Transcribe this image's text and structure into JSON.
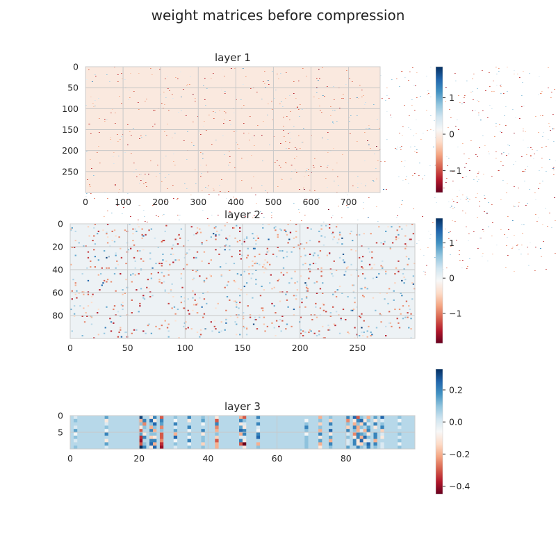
{
  "figure": {
    "title": "weight matrices before compression"
  },
  "colormap": {
    "name": "RdBu",
    "stops": [
      "#67001f",
      "#b2182b",
      "#d6604d",
      "#f4a582",
      "#fddbc7",
      "#f7f7f7",
      "#d1e5f0",
      "#92c5de",
      "#4393c3",
      "#2166ac",
      "#053061"
    ]
  },
  "chart_data": [
    {
      "type": "heatmap",
      "title": "layer 1",
      "rows": 300,
      "cols": 784,
      "xlim": [
        0,
        784
      ],
      "ylim": [
        300,
        0
      ],
      "xticks": [
        0,
        100,
        200,
        300,
        400,
        500,
        600,
        700
      ],
      "yticks": [
        0,
        50,
        100,
        150,
        200,
        250
      ],
      "grid": true,
      "colorbar": {
        "range": [
          -1.6,
          1.85
        ],
        "ticks": [
          1,
          0,
          -1
        ],
        "tick_labels": [
          "1",
          "0",
          "−1"
        ]
      },
      "background_value": -0.05
    },
    {
      "type": "heatmap",
      "title": "layer 2",
      "rows": 100,
      "cols": 300,
      "xlim": [
        0,
        300
      ],
      "ylim": [
        100,
        0
      ],
      "xticks": [
        0,
        50,
        100,
        150,
        200,
        250
      ],
      "yticks": [
        0,
        20,
        40,
        60,
        80
      ],
      "grid": true,
      "colorbar": {
        "range": [
          -1.85,
          1.7
        ],
        "ticks": [
          1,
          0,
          -1
        ],
        "tick_labels": [
          "1",
          "0",
          "−1"
        ]
      },
      "background_value": 0.02
    },
    {
      "type": "heatmap",
      "title": "layer 3",
      "rows": 10,
      "cols": 100,
      "xlim": [
        0,
        100
      ],
      "ylim": [
        10,
        0
      ],
      "xticks": [
        0,
        20,
        40,
        60,
        80
      ],
      "yticks": [
        0,
        5
      ],
      "grid": true,
      "colorbar": {
        "range": [
          -0.45,
          0.33
        ],
        "ticks": [
          0.2,
          0.0,
          -0.2,
          -0.4
        ],
        "tick_labels": [
          "0.2",
          "0.0",
          "−0.2",
          "−0.4"
        ]
      },
      "background_value": 0.05,
      "active_columns": [
        1,
        10,
        20,
        21,
        23,
        24,
        26,
        30,
        34,
        38,
        42,
        49,
        50,
        54,
        68,
        72,
        75,
        80,
        82,
        83,
        84,
        85,
        86,
        88,
        90,
        95
      ],
      "values": [
        [
          0,
          0.15,
          0.3,
          0.05,
          -0.1,
          0.2,
          -0.3,
          0.1,
          0.2,
          0.1,
          -0.1,
          -0.2,
          -0.3,
          0.2,
          0.05,
          -0.2,
          0.1,
          0.2,
          0.25,
          -0.3,
          0.1,
          0.05,
          -0.2,
          0.15,
          0.25,
          0.1
        ],
        [
          0.1,
          -0.1,
          -0.2,
          0.2,
          0.25,
          -0.1,
          0.2,
          -0.05,
          -0.1,
          0.15,
          -0.3,
          0.2,
          0.1,
          0.05,
          -0.05,
          0.1,
          -0.15,
          -0.25,
          -0.1,
          0.2,
          0.25,
          -0.1,
          0.1,
          -0.1,
          0.0,
          -0.05
        ],
        [
          0.05,
          0.0,
          0.1,
          -0.25,
          0.1,
          0.25,
          0.15,
          0.2,
          0.05,
          -0.05,
          0.2,
          -0.1,
          0.0,
          0.2,
          0.1,
          -0.15,
          0.2,
          0.1,
          -0.2,
          0.1,
          -0.15,
          0.2,
          0.0,
          0.2,
          0.1,
          0.1
        ],
        [
          0.0,
          0.1,
          -0.1,
          0.1,
          -0.2,
          0.1,
          -0.25,
          0.0,
          0.2,
          0.05,
          -0.25,
          0.15,
          -0.1,
          0.0,
          0.2,
          0.1,
          0.05,
          -0.15,
          0.2,
          -0.2,
          0.1,
          0.05,
          0.15,
          -0.1,
          0.2,
          0.0
        ],
        [
          0.15,
          -0.05,
          -0.3,
          0.05,
          0.2,
          -0.2,
          0.1,
          0.15,
          -0.05,
          0.2,
          -0.2,
          0.25,
          0.2,
          -0.05,
          0.1,
          -0.2,
          0.25,
          0.2,
          0.1,
          -0.2,
          0.0,
          -0.2,
          0.2,
          0.05,
          -0.15,
          0.05
        ],
        [
          -0.05,
          0.2,
          0.15,
          -0.1,
          0.1,
          0.1,
          -0.3,
          -0.2,
          0.1,
          -0.1,
          0.1,
          -0.2,
          0.2,
          0.2,
          -0.05,
          0.2,
          -0.1,
          0.0,
          -0.25,
          0.2,
          0.15,
          0.1,
          -0.1,
          0.2,
          0.0,
          0.1
        ],
        [
          0.1,
          0.05,
          -0.35,
          0.2,
          -0.15,
          -0.1,
          -0.3,
          0.25,
          -0.05,
          0.1,
          -0.15,
          0.0,
          0.0,
          0.25,
          0.1,
          -0.1,
          0.15,
          0.1,
          -0.1,
          0.2,
          -0.2,
          0.25,
          0.1,
          0.2,
          -0.1,
          0.0
        ],
        [
          0.0,
          -0.1,
          -0.4,
          0.05,
          0.2,
          0.2,
          -0.25,
          -0.05,
          0.2,
          0.1,
          -0.3,
          0.2,
          -0.1,
          0.05,
          0.1,
          0.15,
          -0.2,
          0.0,
          0.2,
          -0.1,
          0.25,
          -0.1,
          0.0,
          -0.2,
          0.05,
          0.1
        ],
        [
          0.05,
          0.15,
          -0.3,
          0.1,
          0.25,
          -0.2,
          -0.35,
          0.1,
          -0.05,
          -0.15,
          -0.2,
          -0.3,
          -0.45,
          -0.2,
          0.1,
          -0.2,
          0.2,
          0.0,
          0.2,
          -0.1,
          -0.15,
          0.1,
          0.25,
          0.2,
          0.0,
          -0.05
        ],
        [
          0.1,
          0.0,
          0.33,
          0.2,
          -0.1,
          0.25,
          -0.4,
          0.0,
          0.1,
          0.1,
          -0.2,
          0.05,
          -0.1,
          0.1,
          0.1,
          -0.1,
          0.1,
          0.15,
          0.05,
          0.2,
          0.1,
          0.05,
          0.2,
          0.1,
          0.0,
          0.1
        ]
      ]
    }
  ]
}
